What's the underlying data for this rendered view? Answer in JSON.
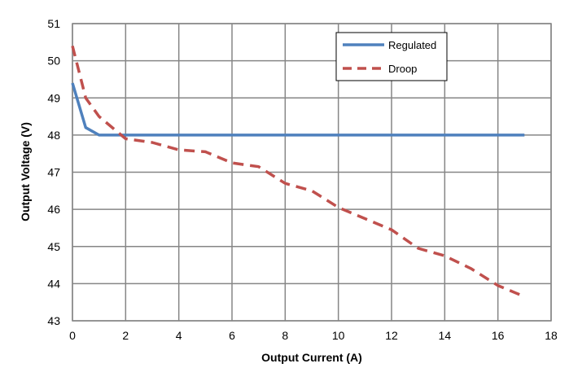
{
  "chart_data": {
    "type": "line",
    "xlabel": "Output Current (A)",
    "ylabel": "Output Voltage (V)",
    "xlim": [
      0,
      18
    ],
    "ylim": [
      43,
      51
    ],
    "xticks": [
      "0",
      "2",
      "4",
      "6",
      "8",
      "10",
      "12",
      "14",
      "16",
      "18"
    ],
    "yticks": [
      "43",
      "44",
      "45",
      "46",
      "47",
      "48",
      "49",
      "50",
      "51"
    ],
    "grid": true,
    "legend": "top-right",
    "series": [
      {
        "name": "Regulated",
        "color": "#4f81bd",
        "style": "solid",
        "x": [
          0,
          0.5,
          1,
          2,
          17
        ],
        "y": [
          49.4,
          48.2,
          48.0,
          48.0,
          48.0
        ]
      },
      {
        "name": "Droop",
        "color": "#c0504d",
        "style": "dashed",
        "x": [
          0,
          0.5,
          1,
          2,
          3,
          4,
          5,
          6,
          7,
          8,
          9,
          10,
          11,
          12,
          13,
          14,
          15,
          16,
          17
        ],
        "y": [
          50.4,
          49.0,
          48.5,
          47.9,
          47.8,
          47.6,
          47.55,
          47.25,
          47.15,
          46.7,
          46.5,
          46.05,
          45.75,
          45.45,
          44.95,
          44.75,
          44.4,
          43.95,
          43.65
        ]
      }
    ]
  }
}
